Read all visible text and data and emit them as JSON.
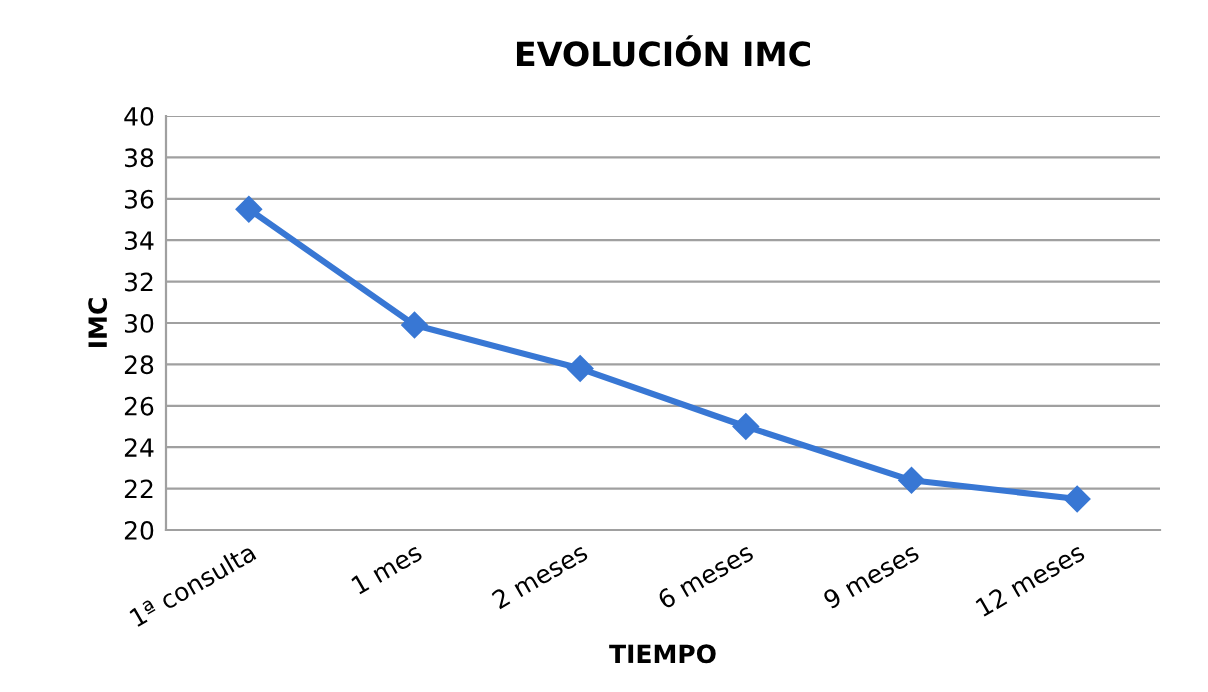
{
  "chart_data": {
    "type": "line",
    "title": "EVOLUCIÓN IMC",
    "xlabel": "TIEMPO",
    "ylabel": "IMC",
    "categories": [
      "1ª consulta",
      "1 mes",
      "2 meses",
      "6 meses",
      "9 meses",
      "12 meses"
    ],
    "series": [
      {
        "color": "#3877d4",
        "values": [
          35.5,
          29.9,
          27.8,
          25.0,
          22.4,
          21.5
        ]
      }
    ],
    "ylim": [
      20,
      40
    ],
    "yticks": [
      20,
      22,
      24,
      26,
      28,
      30,
      32,
      34,
      36,
      38,
      40
    ],
    "grid": "y",
    "marker": "diamond",
    "line_style": "solid",
    "legend": false
  }
}
